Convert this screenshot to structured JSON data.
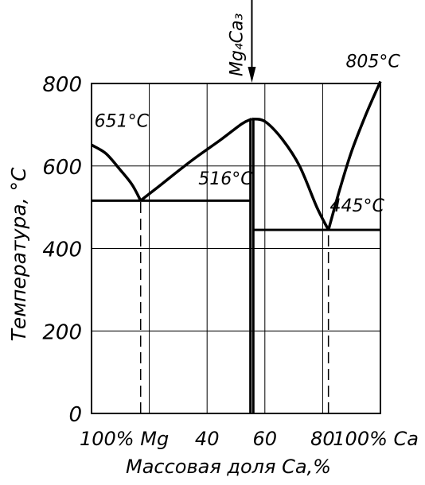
{
  "chart_data": {
    "type": "line",
    "title": "",
    "xlabel": "Массовая доля Ca,%",
    "ylabel": "Температура, °C",
    "xlim": [
      0,
      100
    ],
    "ylim": [
      0,
      800
    ],
    "grid": true,
    "y_ticks": [
      {
        "value": 0,
        "label": "0"
      },
      {
        "value": 200,
        "label": "200"
      },
      {
        "value": 400,
        "label": "400"
      },
      {
        "value": 600,
        "label": "600"
      },
      {
        "value": 800,
        "label": "800"
      }
    ],
    "x_ticks": [
      {
        "value": 0,
        "label": "100% Mg"
      },
      {
        "value": 40,
        "label": "40"
      },
      {
        "value": 60,
        "label": "60"
      },
      {
        "value": 80,
        "label": "80"
      },
      {
        "value": 100,
        "label": "100% Ca"
      }
    ],
    "compound": {
      "label": "Mg₄Ca₃",
      "x": 55.5
    },
    "series": [
      {
        "points": [
          [
            0,
            651
          ],
          [
            5,
            630
          ],
          [
            10,
            590
          ],
          [
            14,
            555
          ],
          [
            17,
            516
          ]
        ]
      },
      {
        "points": [
          [
            17,
            516
          ],
          [
            25,
            560
          ],
          [
            35,
            615
          ],
          [
            45,
            665
          ],
          [
            52,
            702
          ],
          [
            55.5,
            714
          ]
        ]
      },
      {
        "points": [
          [
            55.5,
            714
          ],
          [
            60,
            708
          ],
          [
            66,
            665
          ],
          [
            72,
            600
          ],
          [
            78,
            500
          ],
          [
            82,
            445
          ]
        ]
      },
      {
        "points": [
          [
            82,
            445
          ],
          [
            86,
            545
          ],
          [
            90,
            635
          ],
          [
            95,
            725
          ],
          [
            100,
            805
          ]
        ]
      }
    ],
    "horizontal_lines": [
      {
        "y": 516,
        "x": [
          0,
          55
        ]
      },
      {
        "y": 445,
        "x": [
          56,
          100
        ]
      }
    ],
    "vertical_lines": [
      {
        "x": 55,
        "y": [
          0,
          714
        ]
      },
      {
        "x": 56,
        "y": [
          0,
          714
        ]
      }
    ],
    "dashed_lines": [
      {
        "x": 17,
        "y": [
          0,
          516
        ]
      },
      {
        "x": 82,
        "y": [
          0,
          445
        ]
      }
    ],
    "annotations": [
      {
        "text": "651°C",
        "x": 1,
        "y": 695
      },
      {
        "text": "516°C",
        "x": 37,
        "y": 555
      },
      {
        "text": "445°C",
        "x": 82.5,
        "y": 490
      },
      {
        "text": "805°C",
        "x": 88,
        "y": 840
      }
    ]
  }
}
